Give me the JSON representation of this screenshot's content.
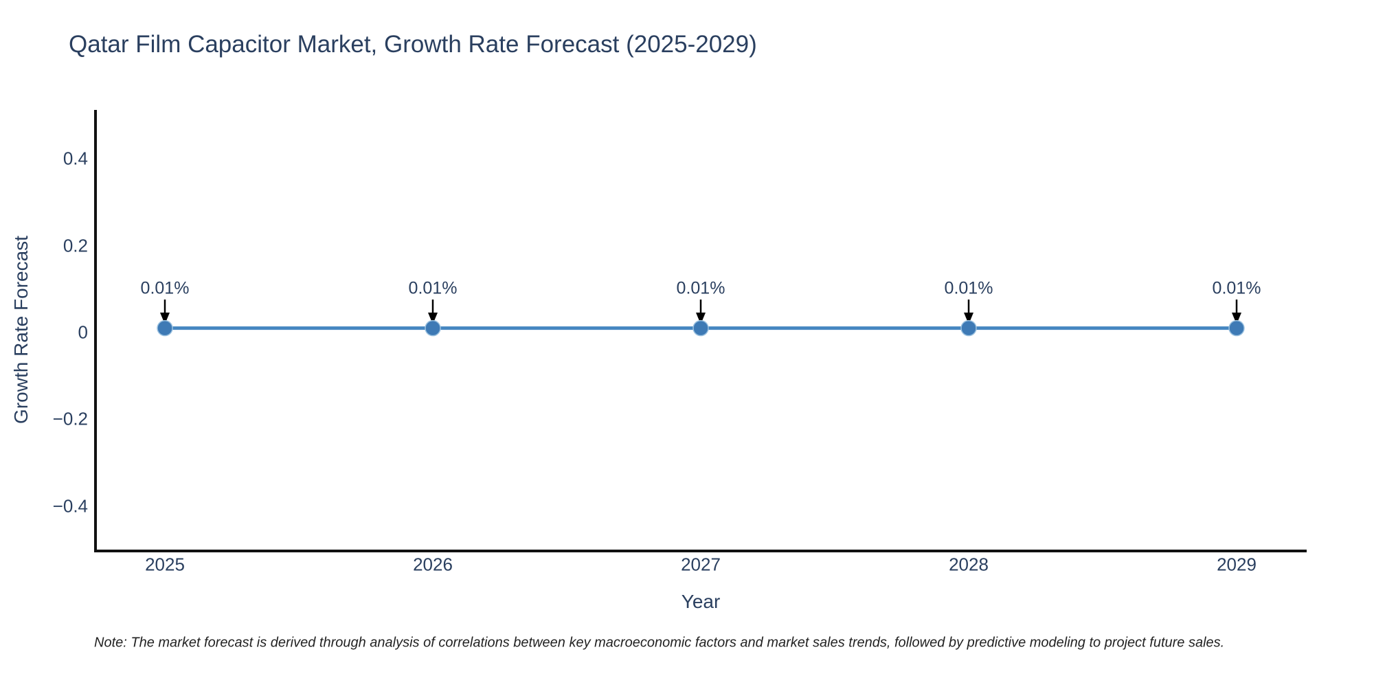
{
  "chart_data": {
    "type": "line",
    "title": "Qatar Film Capacitor Market, Growth Rate Forecast (2025-2029)",
    "xlabel": "Year",
    "ylabel": "Growth Rate Forecast",
    "x": [
      2025,
      2026,
      2027,
      2028,
      2029
    ],
    "y": [
      0.01,
      0.01,
      0.01,
      0.01,
      0.01
    ],
    "point_labels": [
      "0.01%",
      "0.01%",
      "0.01%",
      "0.01%",
      "0.01%"
    ],
    "xtick_labels": [
      "2025",
      "2026",
      "2027",
      "2028",
      "2029"
    ],
    "ytick_values": [
      0.4,
      0.2,
      0,
      -0.2,
      -0.4
    ],
    "ytick_labels": [
      "0.4",
      "0.2",
      "0",
      "−0.2",
      "−0.4"
    ],
    "ylim": [
      -0.5,
      0.52
    ],
    "xlim": [
      2024.74,
      2029.26
    ],
    "grid": false,
    "legend": false,
    "line_color": "#4687c1",
    "marker_color": "#3e7ab5",
    "marker_edge_color": "#9cc2e0",
    "axis_color": "#111111",
    "text_color": "#2a3f5f",
    "arrow_color": "#000000",
    "note": "Note: The market forecast is derived through analysis of correlations between key macroeconomic factors and market sales trends, followed by predictive modeling to project future sales."
  }
}
